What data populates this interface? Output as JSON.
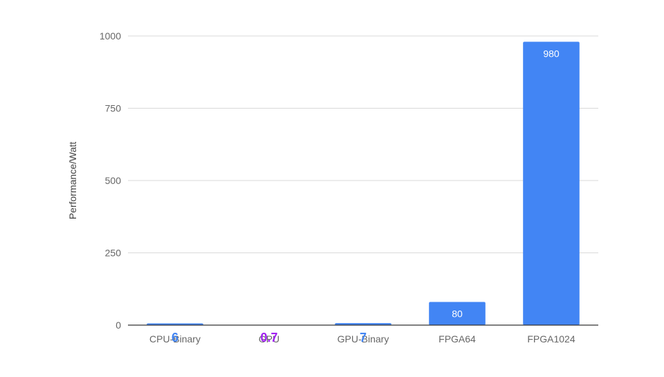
{
  "chart_data": {
    "type": "bar",
    "title": "",
    "xlabel": "",
    "ylabel": "Performance/Watt",
    "categories": [
      "CPU-Binary",
      "GPU",
      "GPU-Binary",
      "FPGA64",
      "FPGA1024"
    ],
    "values": [
      6,
      0.7,
      7,
      80,
      980
    ],
    "data_labels": [
      "6",
      "0.7",
      "7",
      "80",
      "980"
    ],
    "ylim": [
      0,
      1000
    ],
    "yticks": [
      0,
      250,
      500,
      750,
      1000
    ],
    "ytick_labels": [
      "0",
      "250",
      "500",
      "750",
      "1000"
    ],
    "grid": true,
    "legend": "none",
    "colors": {
      "bar": "#4285F4",
      "grid": "#d9d9d9",
      "axis": "#333333",
      "tick_label": "#666666",
      "axis_label": "#444444",
      "inside_label": "#ffffff",
      "outside_label_small": "#4285F4",
      "outside_label_tiny": "#A020F0"
    }
  }
}
